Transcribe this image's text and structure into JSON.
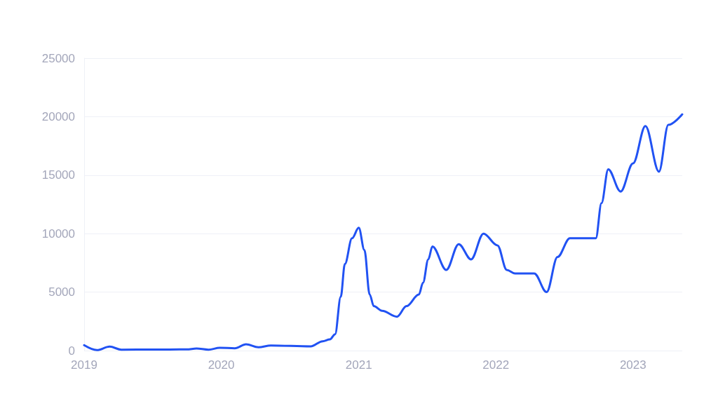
{
  "chart_data": {
    "type": "line",
    "x": [
      "2019-01-01",
      "2019-02-04",
      "2019-03-10",
      "2019-04-10",
      "2019-07-01",
      "2019-10-01",
      "2019-10-27",
      "2019-11-28",
      "2019-12-28",
      "2020-02-06",
      "2020-03-07",
      "2020-04-09",
      "2020-05-12",
      "2020-08-26",
      "2020-09-27",
      "2020-10-16",
      "2020-10-30",
      "2020-11-14",
      "2020-11-25",
      "2020-12-14",
      "2021-01-01",
      "2021-01-16",
      "2021-01-30",
      "2021-02-10",
      "2021-03-04",
      "2021-04-13",
      "2021-05-08",
      "2021-06-10",
      "2021-06-21",
      "2021-07-05",
      "2021-07-16",
      "2021-08-22",
      "2021-09-24",
      "2021-10-27",
      "2021-11-29",
      "2022-01-05",
      "2022-01-30",
      "2022-02-21",
      "2022-04-13",
      "2022-05-16",
      "2022-06-14",
      "2022-07-17",
      "2022-09-24",
      "2022-10-09",
      "2022-10-27",
      "2022-11-29",
      "2023-01-01",
      "2023-02-03",
      "2023-03-11",
      "2023-04-05",
      "2023-05-12"
    ],
    "series": [
      {
        "color": "#2152f3",
        "values": [
          460,
          40,
          340,
          80,
          90,
          100,
          180,
          80,
          240,
          200,
          540,
          280,
          440,
          360,
          800,
          960,
          1400,
          4600,
          7400,
          9600,
          10500,
          8600,
          4800,
          3800,
          3400,
          2900,
          3800,
          4800,
          5800,
          7800,
          8900,
          6900,
          9100,
          7800,
          10000,
          9000,
          6900,
          6600,
          6600,
          5000,
          8000,
          9600,
          9600,
          12600,
          15500,
          13600,
          16000,
          19200,
          15300,
          19300,
          20200
        ]
      }
    ],
    "xlim": [
      "2019-01-01",
      "2023-05-12"
    ],
    "xticks": [
      "2019",
      "2020",
      "2021",
      "2022",
      "2023"
    ],
    "ylim": [
      0,
      25000
    ],
    "yticks": [
      0,
      5000,
      10000,
      15000,
      20000,
      25000
    ],
    "grid": "y",
    "marker": "none",
    "line_style": "solid"
  }
}
